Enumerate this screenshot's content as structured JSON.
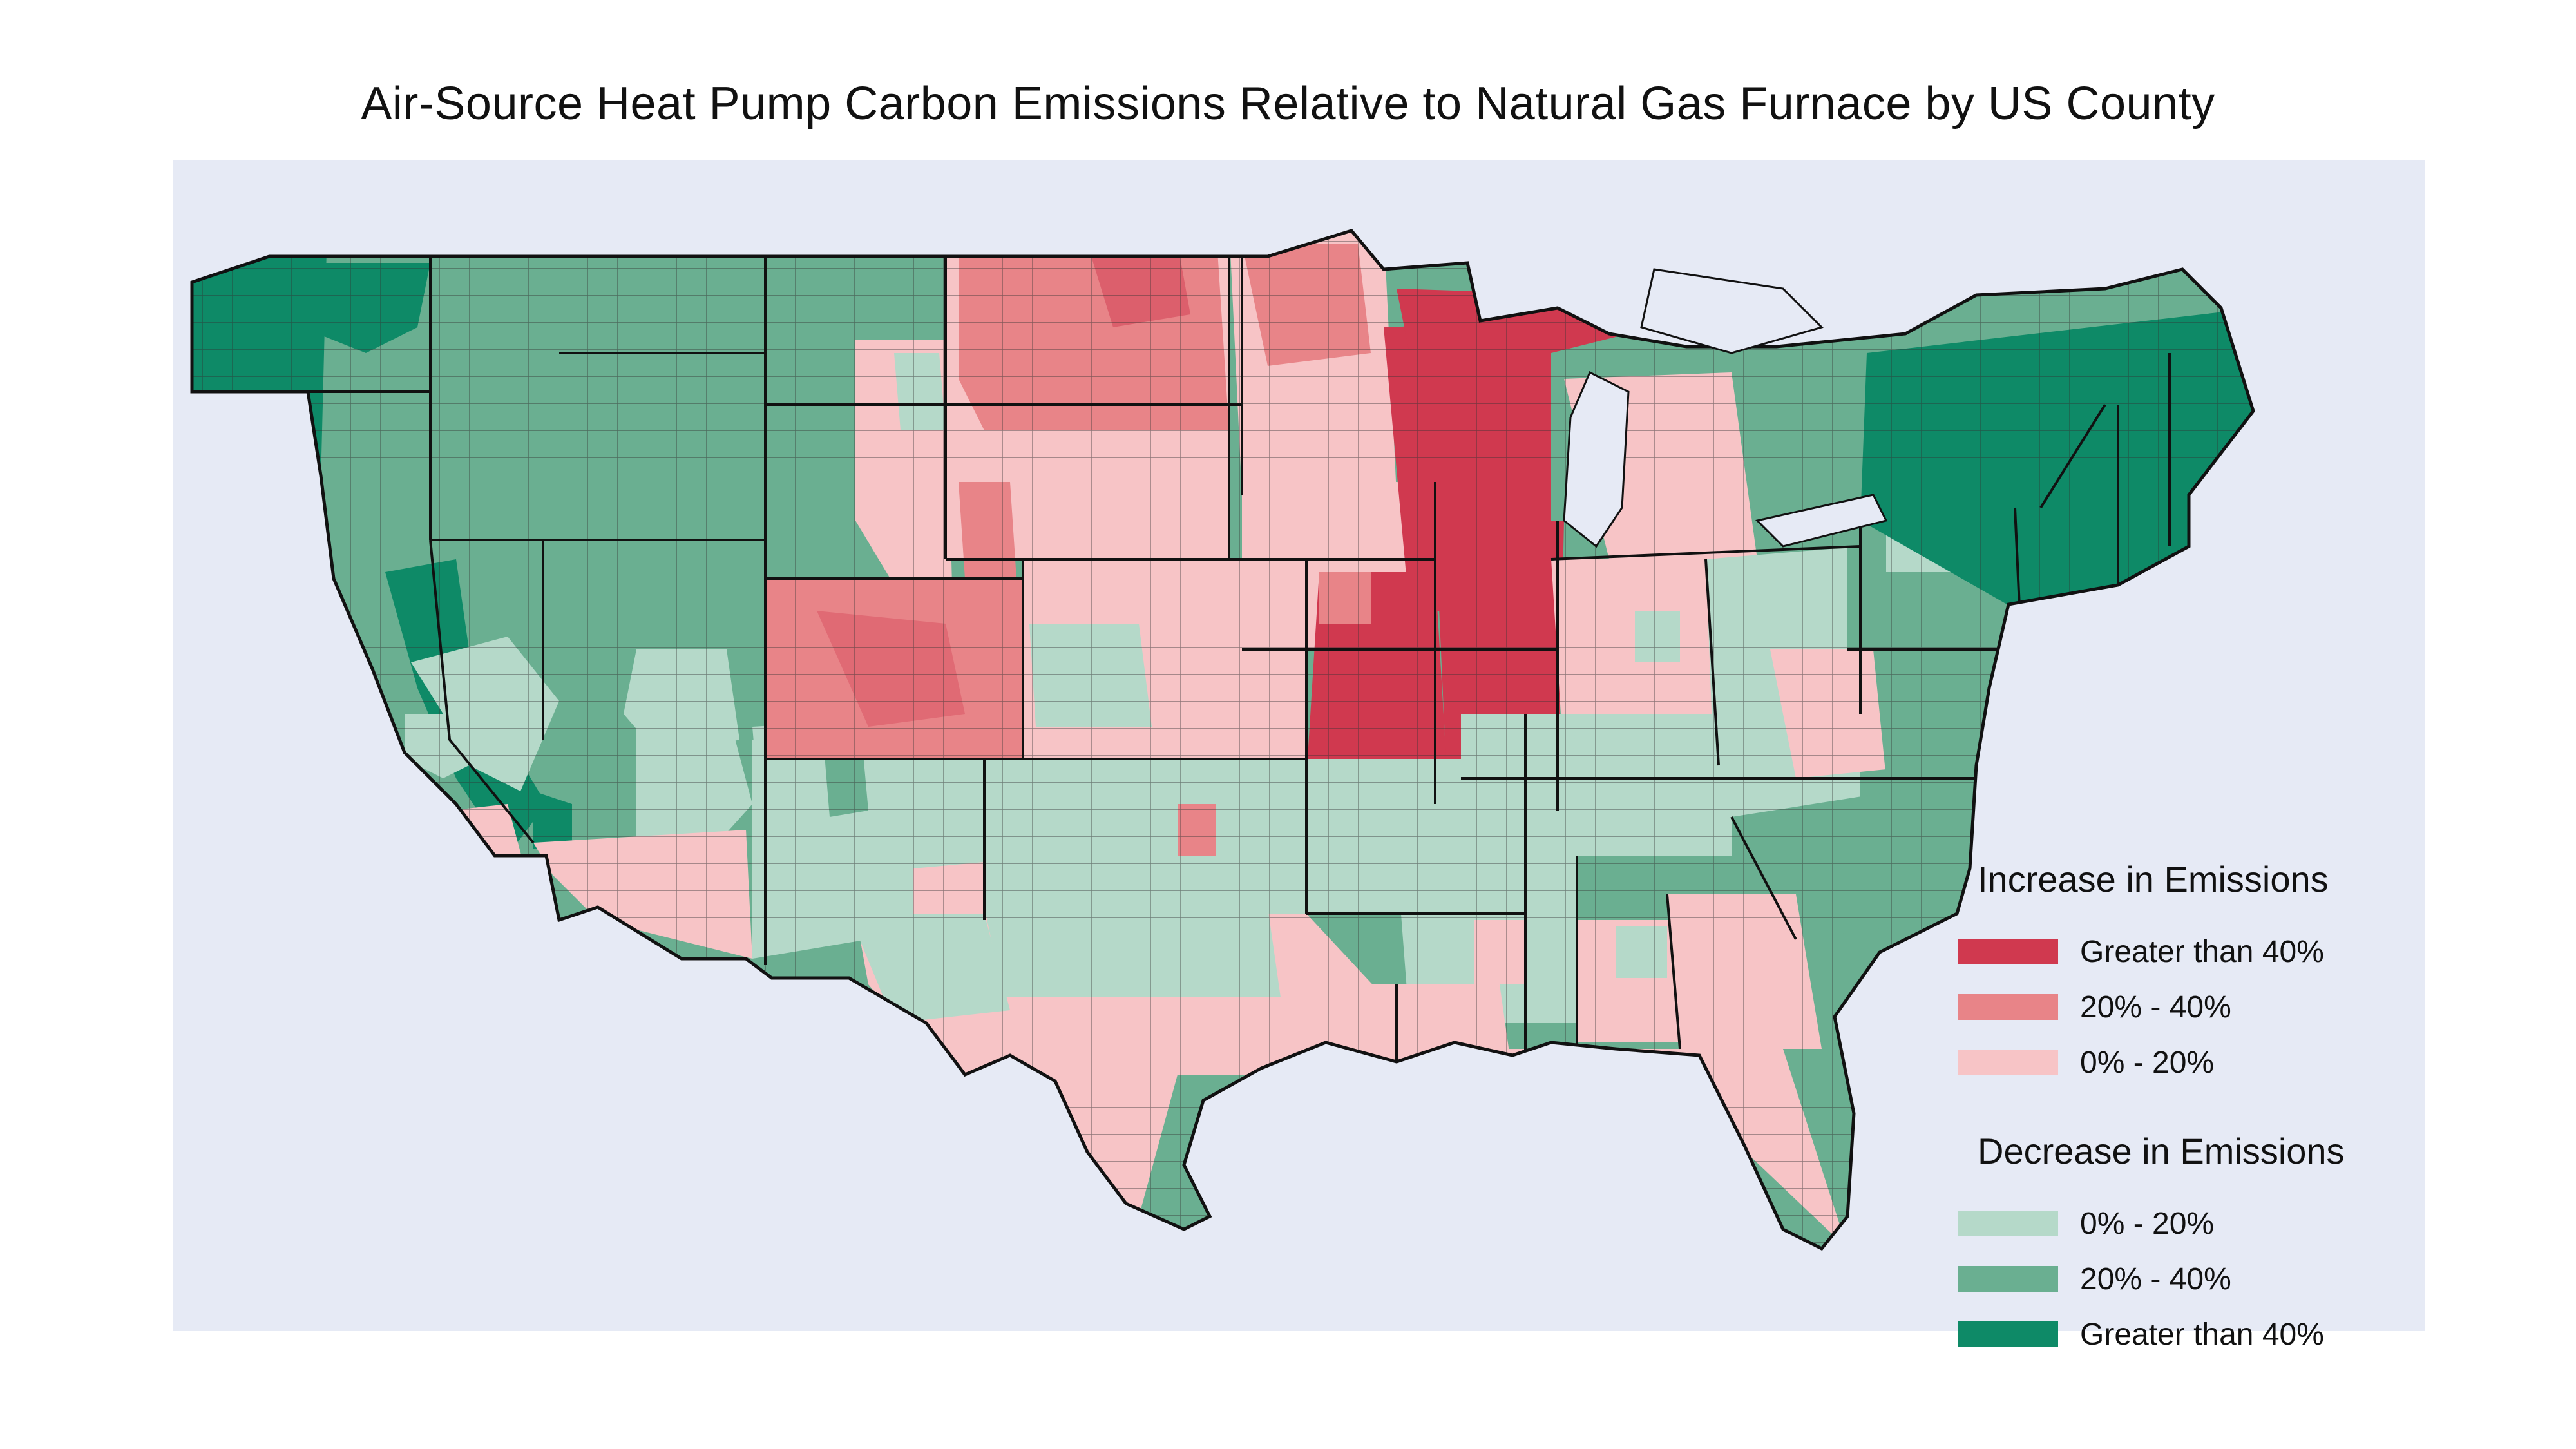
{
  "title": "Air-Source Heat Pump Carbon Emissions Relative to Natural Gas Furnace by US County",
  "colors": {
    "background": "#e6eaf5",
    "increase_high": "#d0394f",
    "increase_mid": "#e88488",
    "increase_low": "#f7c4c6",
    "decrease_low": "#b5d9c9",
    "decrease_mid": "#6aaf91",
    "decrease_high": "#0e8a67"
  },
  "legend": {
    "increase_heading": "Increase in Emissions",
    "decrease_heading": "Decrease in Emissions",
    "increase_items": [
      {
        "label": "Greater than 40%",
        "color": "#d0394f"
      },
      {
        "label": "20% - 40%",
        "color": "#e88488"
      },
      {
        "label": "0% - 20%",
        "color": "#f7c4c6"
      }
    ],
    "decrease_items": [
      {
        "label": "0% - 20%",
        "color": "#b5d9c9"
      },
      {
        "label": "20% - 40%",
        "color": "#6aaf91"
      },
      {
        "label": "Greater than 40%",
        "color": "#0e8a67"
      }
    ]
  }
}
